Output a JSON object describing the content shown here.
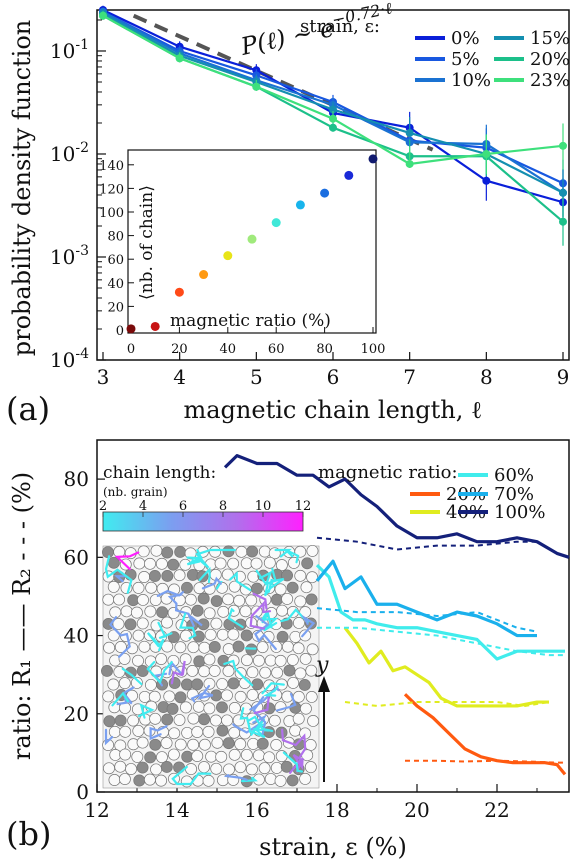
{
  "chart_data": [
    {
      "panel": "(a)",
      "type": "line",
      "xlabel": "magnetic chain length, ℓ",
      "ylabel": "probability density function",
      "yscale": "log",
      "xlim": [
        3,
        9
      ],
      "ylim": [
        0.0001,
        0.25
      ],
      "x_ticks": [
        "3",
        "4",
        "5",
        "6",
        "7",
        "8",
        "9"
      ],
      "y_ticks": [
        {
          "v": 0.0001,
          "base": "10",
          "exp": "-4"
        },
        {
          "v": 0.001,
          "base": "10",
          "exp": "-3"
        },
        {
          "v": 0.01,
          "base": "10",
          "exp": "-2"
        },
        {
          "v": 0.1,
          "base": "10",
          "exp": "-1"
        }
      ],
      "legend_title": "strain, ε:",
      "legend_position": "top-right",
      "annotation": {
        "lhs": "P(ℓ) ~ e",
        "exp": "−0.72·ℓ"
      },
      "fit": {
        "slope": -0.72,
        "x": [
          3.4,
          7.3
        ],
        "y": [
          0.22,
          0.011
        ],
        "style": "dashed",
        "color": "#555555"
      },
      "x": [
        3,
        4,
        5,
        6,
        7,
        8,
        9
      ],
      "series": [
        {
          "name": "0%",
          "color": "#0a1fd9",
          "values": [
            0.25,
            0.11,
            0.065,
            0.025,
            0.018,
            0.0055,
            0.0034
          ]
        },
        {
          "name": "5%",
          "color": "#1858e0",
          "values": [
            0.24,
            0.1,
            0.058,
            0.032,
            0.0135,
            0.0115,
            0.0052
          ]
        },
        {
          "name": "10%",
          "color": "#1a72d2",
          "values": [
            0.24,
            0.095,
            0.052,
            0.03,
            0.013,
            0.0125,
            0.0042
          ]
        },
        {
          "name": "15%",
          "color": "#148fb0",
          "values": [
            0.23,
            0.09,
            0.05,
            0.027,
            0.016,
            0.01,
            0.0042
          ]
        },
        {
          "name": "20%",
          "color": "#1cc08a",
          "values": [
            0.22,
            0.085,
            0.045,
            0.018,
            0.0095,
            0.0095,
            0.0022
          ]
        },
        {
          "name": "23%",
          "color": "#3ee07c",
          "values": [
            0.22,
            0.085,
            0.045,
            0.022,
            0.008,
            0.01,
            0.012
          ]
        }
      ],
      "inset": {
        "type": "scatter",
        "xlabel": "magnetic ratio (%)",
        "ylabel": "⟨nb. of chain⟩",
        "xlim": [
          0,
          100
        ],
        "ylim": [
          0,
          150
        ],
        "x_ticks": [
          "0",
          "20",
          "40",
          "60",
          "80",
          "100"
        ],
        "y_ticks": [
          "0",
          "20",
          "40",
          "60",
          "80",
          "100",
          "120",
          "140"
        ],
        "points": [
          {
            "x": 0,
            "y": 1,
            "color": "#7a0a0a"
          },
          {
            "x": 10,
            "y": 3,
            "color": "#c81414"
          },
          {
            "x": 20,
            "y": 32,
            "color": "#ff4a18"
          },
          {
            "x": 30,
            "y": 47,
            "color": "#ff9a12"
          },
          {
            "x": 40,
            "y": 63,
            "color": "#e8e418"
          },
          {
            "x": 50,
            "y": 77,
            "color": "#a0ea7c"
          },
          {
            "x": 60,
            "y": 91,
            "color": "#40e8d8"
          },
          {
            "x": 70,
            "y": 106,
            "color": "#18b4ec"
          },
          {
            "x": 80,
            "y": 116,
            "color": "#1a6ee0"
          },
          {
            "x": 90,
            "y": 131,
            "color": "#1a2ad8"
          },
          {
            "x": 100,
            "y": 145,
            "color": "#111a6e"
          }
        ]
      }
    },
    {
      "panel": "(b)",
      "type": "line",
      "xlabel": "strain, ε (%)",
      "ylabel": "ratio: R₁ —— R₂ - - - (%)",
      "xlim": [
        12,
        23.8
      ],
      "ylim": [
        0,
        90
      ],
      "x_ticks": [
        "12",
        "14",
        "16",
        "18",
        "20",
        "22"
      ],
      "y_ticks": [
        "0",
        "20",
        "40",
        "60",
        "80"
      ],
      "legend_title": "magnetic ratio:",
      "legend_position": "top-right",
      "colorbar": {
        "title": "chain length:",
        "subtitle": "(nb. grain)",
        "ticks": [
          "2",
          "4",
          "6",
          "8",
          "10",
          "12"
        ],
        "colors": [
          "#40ecf0",
          "#7aa0f0",
          "#b070ec",
          "#ff20ff"
        ]
      },
      "axis_arrow_label": "y",
      "series": [
        {
          "name": "20%",
          "color": "#ff5a10",
          "r1": {
            "x": [
              19.7,
              20.0,
              20.4,
              20.8,
              21.2,
              21.6,
              22.0,
              22.4,
              22.8,
              23.2,
              23.5,
              23.7
            ],
            "y": [
              25,
              22,
              19,
              15,
              11,
              9,
              8,
              7.5,
              7.5,
              7.5,
              7,
              4.5
            ]
          },
          "r2": {
            "x": [
              19.7,
              20.4,
              21.2,
              22.0,
              22.8,
              23.5,
              23.7
            ],
            "y": [
              8,
              8,
              7.8,
              8,
              7.8,
              7.5,
              7.5
            ]
          }
        },
        {
          "name": "40%",
          "color": "#e0ec20",
          "r1": {
            "x": [
              18.2,
              18.5,
              18.8,
              19.1,
              19.4,
              19.7,
              20.0,
              20.3,
              20.6,
              21.0,
              21.5,
              22.0,
              22.5,
              23.0,
              23.3
            ],
            "y": [
              42,
              38,
              33,
              36,
              31,
              32,
              30,
              28,
              24,
              22,
              22,
              22,
              22,
              23,
              23
            ]
          },
          "r2": {
            "x": [
              18.2,
              19.0,
              20.0,
              21.0,
              22.0,
              22.7,
              23.3
            ],
            "y": [
              23,
              22,
              23,
              23,
              23,
              22,
              23
            ]
          }
        },
        {
          "name": "60%",
          "color": "#40ecec",
          "r1": {
            "x": [
              17.5,
              17.8,
              18.1,
              18.4,
              18.7,
              19.0,
              19.5,
              20.0,
              20.5,
              21.0,
              21.5,
              22.0,
              22.5,
              23.0,
              23.5,
              23.7
            ],
            "y": [
              58,
              55,
              46,
              44,
              44,
              43,
              42,
              42,
              41,
              40,
              39,
              34,
              36,
              36,
              36,
              36
            ]
          },
          "r2": {
            "x": [
              17.5,
              18.5,
              19.5,
              20.5,
              21.5,
              22.5,
              23.3,
              23.7
            ],
            "y": [
              42,
              42,
              41,
              40,
              38,
              36,
              35,
              35
            ]
          }
        },
        {
          "name": "70%",
          "color": "#1ab0ec",
          "r1": {
            "x": [
              17.5,
              17.9,
              18.2,
              18.6,
              19.0,
              19.5,
              20.0,
              20.5,
              21.0,
              21.5,
              22.0,
              22.5,
              23.0
            ],
            "y": [
              54,
              59,
              52,
              55,
              48,
              48,
              46,
              44,
              46,
              45,
              43,
              40,
              40
            ]
          },
          "r2": {
            "x": [
              17.5,
              18.5,
              19.5,
              20.5,
              21.5,
              22.5,
              23.0
            ],
            "y": [
              47,
              46,
              46,
              45,
              46,
              42,
              41
            ]
          }
        },
        {
          "name": "100%",
          "color": "#14207a",
          "r1": {
            "x": [
              15.2,
              15.5,
              16.0,
              16.5,
              17.0,
              17.4,
              17.8,
              18.2,
              18.6,
              19.0,
              19.5,
              20.0,
              20.5,
              21.0,
              21.5,
              22.0,
              22.5,
              23.0,
              23.5,
              23.8
            ],
            "y": [
              83,
              86,
              84,
              84,
              81,
              81,
              78,
              80,
              76,
              73,
              68,
              65,
              65,
              66,
              64,
              64,
              65,
              64,
              61,
              60
            ]
          },
          "r2": {
            "x": [
              17.5,
              18.5,
              19.5,
              20.5,
              21.5,
              22.5,
              23.0,
              23.5,
              23.8
            ],
            "y": [
              65,
              64,
              62,
              63,
              63,
              64,
              64,
              61,
              60
            ]
          }
        }
      ]
    }
  ],
  "panel_labels": {
    "a": "(a)",
    "b": "(b)"
  }
}
